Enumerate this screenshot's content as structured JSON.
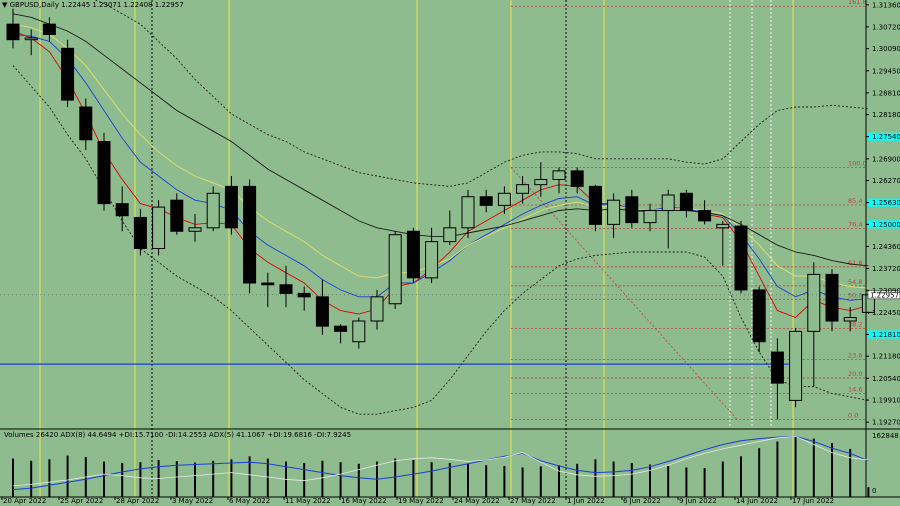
{
  "header": {
    "menu_icon": "triangle-down-icon",
    "symbol": "GBPUSD,Daily",
    "ohlc": "1.22445 1.23071 1.22408 1.22957"
  },
  "indicator": {
    "text": "Volumes 26420  ADX(8) 44.6494 +DI:15.7100 -DI:14.2553  ADX(5) 41.1067 +DI:19.6816 -DI:7.9245",
    "top_value": "162848",
    "zero_value": "0"
  },
  "colors": {
    "background": "#8fbc8f",
    "bull_candle": "#8fbc8f",
    "bear_candle": "#000000",
    "ma_red": "#dd0000",
    "ma_blue": "#1a3fd6",
    "ma_yellow": "#e0e070",
    "ma_black": "#1a1a1a",
    "bollinger": "#1a1a1a",
    "fib_line": "#c0403a",
    "horizontal_line": "#1a3fd6",
    "vertical_yellow": "#e8e840",
    "price_highlight": "#00ffff",
    "adx_line": "#1a3fd6",
    "di_line": "#e8e8e8"
  },
  "chart_data": {
    "type": "candlestick",
    "title": "GBPUSD,Daily",
    "ylim": [
      1.191,
      1.315
    ],
    "price_ticks": [
      "1.31360",
      "1.30720",
      "1.30090",
      "1.29450",
      "1.28810",
      "1.28180",
      "1.27540",
      "1.26900",
      "1.26270",
      "1.25630",
      "1.25000",
      "1.24360",
      "1.23720",
      "1.23090",
      "1.22450",
      "1.21810",
      "1.21180",
      "1.20540",
      "1.19910",
      "1.19270"
    ],
    "current_price": "1.22957",
    "highlighted_prices": [
      1.2754,
      1.2563,
      1.25,
      1.2181
    ],
    "date_labels": [
      "20 Apr 2022",
      "25 Apr 2022",
      "28 Apr 2022",
      "3 May 2022",
      "6 May 2022",
      "11 May 2022",
      "16 May 2022",
      "19 May 2022",
      "24 May 2022",
      "27 May 2022",
      "1 Jun 2022",
      "6 Jun 2022",
      "9 Jun 2022",
      "14 Jun 2022",
      "17 Jun 2022"
    ],
    "candles": [
      {
        "o": 1.308,
        "h": 1.3125,
        "l": 1.301,
        "c": 1.3035
      },
      {
        "o": 1.3035,
        "h": 1.3065,
        "l": 1.299,
        "c": 1.304
      },
      {
        "o": 1.308,
        "h": 1.31,
        "l": 1.303,
        "c": 1.305
      },
      {
        "o": 1.301,
        "h": 1.3035,
        "l": 1.284,
        "c": 1.286
      },
      {
        "o": 1.284,
        "h": 1.2865,
        "l": 1.2715,
        "c": 1.2745
      },
      {
        "o": 1.274,
        "h": 1.2765,
        "l": 1.254,
        "c": 1.256
      },
      {
        "o": 1.256,
        "h": 1.261,
        "l": 1.248,
        "c": 1.2525
      },
      {
        "o": 1.252,
        "h": 1.2545,
        "l": 1.241,
        "c": 1.243
      },
      {
        "o": 1.243,
        "h": 1.257,
        "l": 1.241,
        "c": 1.255
      },
      {
        "o": 1.257,
        "h": 1.259,
        "l": 1.247,
        "c": 1.248
      },
      {
        "o": 1.248,
        "h": 1.253,
        "l": 1.245,
        "c": 1.249
      },
      {
        "o": 1.249,
        "h": 1.261,
        "l": 1.248,
        "c": 1.259
      },
      {
        "o": 1.261,
        "h": 1.264,
        "l": 1.247,
        "c": 1.249
      },
      {
        "o": 1.261,
        "h": 1.263,
        "l": 1.23,
        "c": 1.233
      },
      {
        "o": 1.233,
        "h": 1.236,
        "l": 1.226,
        "c": 1.2325
      },
      {
        "o": 1.2325,
        "h": 1.238,
        "l": 1.226,
        "c": 1.23
      },
      {
        "o": 1.23,
        "h": 1.232,
        "l": 1.225,
        "c": 1.229
      },
      {
        "o": 1.229,
        "h": 1.234,
        "l": 1.218,
        "c": 1.2205
      },
      {
        "o": 1.2205,
        "h": 1.221,
        "l": 1.2155,
        "c": 1.219
      },
      {
        "o": 1.216,
        "h": 1.223,
        "l": 1.214,
        "c": 1.222
      },
      {
        "o": 1.222,
        "h": 1.231,
        "l": 1.2195,
        "c": 1.229
      },
      {
        "o": 1.227,
        "h": 1.248,
        "l": 1.2255,
        "c": 1.247
      },
      {
        "o": 1.248,
        "h": 1.249,
        "l": 1.233,
        "c": 1.2345
      },
      {
        "o": 1.2345,
        "h": 1.249,
        "l": 1.233,
        "c": 1.245
      },
      {
        "o": 1.245,
        "h": 1.254,
        "l": 1.244,
        "c": 1.249
      },
      {
        "o": 1.249,
        "h": 1.26,
        "l": 1.246,
        "c": 1.258
      },
      {
        "o": 1.258,
        "h": 1.26,
        "l": 1.2535,
        "c": 1.2555
      },
      {
        "o": 1.2555,
        "h": 1.261,
        "l": 1.253,
        "c": 1.259
      },
      {
        "o": 1.259,
        "h": 1.264,
        "l": 1.256,
        "c": 1.2615
      },
      {
        "o": 1.2615,
        "h": 1.268,
        "l": 1.258,
        "c": 1.263
      },
      {
        "o": 1.263,
        "h": 1.2665,
        "l": 1.259,
        "c": 1.2655
      },
      {
        "o": 1.2655,
        "h": 1.2665,
        "l": 1.259,
        "c": 1.261
      },
      {
        "o": 1.261,
        "h": 1.2615,
        "l": 1.248,
        "c": 1.25
      },
      {
        "o": 1.25,
        "h": 1.259,
        "l": 1.246,
        "c": 1.257
      },
      {
        "o": 1.258,
        "h": 1.26,
        "l": 1.249,
        "c": 1.2505
      },
      {
        "o": 1.2505,
        "h": 1.256,
        "l": 1.248,
        "c": 1.254
      },
      {
        "o": 1.254,
        "h": 1.26,
        "l": 1.243,
        "c": 1.2585
      },
      {
        "o": 1.259,
        "h": 1.26,
        "l": 1.252,
        "c": 1.254
      },
      {
        "o": 1.254,
        "h": 1.257,
        "l": 1.25,
        "c": 1.251
      },
      {
        "o": 1.249,
        "h": 1.251,
        "l": 1.238,
        "c": 1.25
      },
      {
        "o": 1.2495,
        "h": 1.251,
        "l": 1.23,
        "c": 1.231
      },
      {
        "o": 1.231,
        "h": 1.232,
        "l": 1.213,
        "c": 1.216
      },
      {
        "o": 1.213,
        "h": 1.217,
        "l": 1.1935,
        "c": 1.204
      },
      {
        "o": 1.199,
        "h": 1.22,
        "l": 1.197,
        "c": 1.219
      },
      {
        "o": 1.219,
        "h": 1.239,
        "l": 1.203,
        "c": 1.2355
      },
      {
        "o": 1.2355,
        "h": 1.237,
        "l": 1.219,
        "c": 1.222
      },
      {
        "o": 1.222,
        "h": 1.226,
        "l": 1.219,
        "c": 1.223
      },
      {
        "o": 1.2245,
        "h": 1.2307,
        "l": 1.2241,
        "c": 1.2296
      }
    ],
    "series": [
      {
        "values": [
          1.306,
          1.304,
          1.3,
          1.292,
          1.282,
          1.271,
          1.263,
          1.256,
          1.2545,
          1.252,
          1.25,
          1.2505,
          1.25,
          1.243,
          1.239,
          1.236,
          1.233,
          1.228,
          1.225,
          1.224,
          1.2255,
          1.232,
          1.233,
          1.237,
          1.242,
          1.248,
          1.251,
          1.254,
          1.257,
          1.26,
          1.2615,
          1.261,
          1.256,
          1.256,
          1.254,
          1.2535,
          1.255,
          1.2545,
          1.253,
          1.252,
          1.245,
          1.235,
          1.225,
          1.223,
          1.228,
          1.226,
          1.225,
          1.2265
        ]
      },
      {
        "values": [
          1.305,
          1.3045,
          1.303,
          1.298,
          1.291,
          1.283,
          1.275,
          1.268,
          1.264,
          1.26,
          1.257,
          1.256,
          1.254,
          1.248,
          1.244,
          1.241,
          1.238,
          1.234,
          1.231,
          1.229,
          1.229,
          1.233,
          1.233,
          1.236,
          1.2395,
          1.244,
          1.247,
          1.25,
          1.253,
          1.2555,
          1.2575,
          1.258,
          1.2555,
          1.256,
          1.2545,
          1.254,
          1.255,
          1.2545,
          1.2535,
          1.2525,
          1.247,
          1.24,
          1.232,
          1.229,
          1.231,
          1.229,
          1.228,
          1.2285
        ]
      },
      {
        "values": [
          1.308,
          1.307,
          1.305,
          1.301,
          1.296,
          1.289,
          1.282,
          1.276,
          1.271,
          1.267,
          1.264,
          1.262,
          1.26,
          1.255,
          1.251,
          1.248,
          1.245,
          1.241,
          1.238,
          1.235,
          1.2345,
          1.236,
          1.236,
          1.238,
          1.24,
          1.244,
          1.2465,
          1.249,
          1.2515,
          1.254,
          1.2555,
          1.2565,
          1.255,
          1.2555,
          1.2545,
          1.254,
          1.2545,
          1.2545,
          1.254,
          1.253,
          1.249,
          1.244,
          1.238,
          1.235,
          1.235,
          1.233,
          1.232,
          1.2315
        ]
      },
      {
        "values": [
          1.311,
          1.31,
          1.308,
          1.306,
          1.303,
          1.299,
          1.295,
          1.291,
          1.287,
          1.283,
          1.28,
          1.277,
          1.274,
          1.27,
          1.266,
          1.263,
          1.26,
          1.257,
          1.254,
          1.251,
          1.249,
          1.248,
          1.247,
          1.2465,
          1.2465,
          1.2475,
          1.2485,
          1.2495,
          1.251,
          1.2525,
          1.254,
          1.2545,
          1.254,
          1.2545,
          1.254,
          1.254,
          1.254,
          1.254,
          1.2535,
          1.2525,
          1.25,
          1.247,
          1.244,
          1.242,
          1.241,
          1.2395,
          1.2385,
          1.238
        ]
      },
      {
        "values": [
          1.316,
          1.317,
          1.3175,
          1.317,
          1.316,
          1.314,
          1.311,
          1.308,
          1.303,
          1.298,
          1.292,
          1.287,
          1.282,
          1.279,
          1.276,
          1.274,
          1.271,
          1.269,
          1.267,
          1.265,
          1.264,
          1.263,
          1.262,
          1.2615,
          1.261,
          1.262,
          1.265,
          1.268,
          1.27,
          1.271,
          1.271,
          1.2705,
          1.269,
          1.269,
          1.269,
          1.269,
          1.269,
          1.268,
          1.2675,
          1.269,
          1.274,
          1.279,
          1.283,
          1.284,
          1.284,
          1.2845,
          1.284,
          1.2835
        ]
      },
      {
        "values": [
          1.296,
          1.29,
          1.284,
          1.276,
          1.269,
          1.26,
          1.251,
          1.243,
          1.239,
          1.235,
          1.232,
          1.229,
          1.225,
          1.22,
          1.215,
          1.21,
          1.205,
          1.201,
          1.197,
          1.195,
          1.195,
          1.196,
          1.197,
          1.199,
          1.205,
          1.212,
          1.219,
          1.225,
          1.23,
          1.234,
          1.238,
          1.24,
          1.241,
          1.2415,
          1.242,
          1.242,
          1.242,
          1.242,
          1.2405,
          1.235,
          1.223,
          1.213,
          1.205,
          1.203,
          1.203,
          1.201,
          1.2,
          1.199
        ]
      }
    ],
    "horizontal_level": 1.2095,
    "fibonacci": [
      {
        "label": "161.8",
        "price": 1.3132
      },
      {
        "label": "100.0",
        "price": 1.2665
      },
      {
        "label": "85.4",
        "price": 1.2556
      },
      {
        "label": "76.4",
        "price": 1.2488
      },
      {
        "label": "61.8",
        "price": 1.2377
      },
      {
        "label": "54.8",
        "price": 1.2322
      },
      {
        "label": "50.0",
        "price": 1.2283
      },
      {
        "label": "38.2",
        "price": 1.2198
      },
      {
        "label": "23.6",
        "price": 1.2108
      },
      {
        "label": "20.0",
        "price": 1.2055
      },
      {
        "label": "14.6",
        "price": 1.201
      },
      {
        "label": "0.0",
        "price": 1.1935
      }
    ],
    "volumes": [
      104000,
      98000,
      102000,
      112000,
      108000,
      96000,
      92000,
      94000,
      100000,
      97000,
      93000,
      98000,
      102000,
      110000,
      104000,
      96000,
      92000,
      98000,
      94000,
      90000,
      96000,
      104000,
      100000,
      94000,
      92000,
      90000,
      86000,
      84000,
      80000,
      83000,
      86000,
      90000,
      102000,
      96000,
      92000,
      88000,
      84000,
      80000,
      78000,
      96000,
      110000,
      132000,
      150000,
      162848,
      158000,
      146000,
      130000,
      26420
    ],
    "adx_values": [
      20000,
      24000,
      32000,
      40000,
      48000,
      58000,
      68000,
      76000,
      82000,
      86000,
      88000,
      90000,
      92000,
      94000,
      90000,
      82000,
      74000,
      66000,
      58000,
      52000,
      48000,
      54000,
      62000,
      70000,
      80000,
      90000,
      100000,
      110000,
      118000,
      98000,
      84000,
      72000,
      66000,
      68000,
      72000,
      82000,
      96000,
      112000,
      128000,
      142000,
      152000,
      158000,
      162000,
      164000,
      150000,
      132000,
      118000,
      98000
    ],
    "di_values": [
      30000,
      34000,
      40000,
      46000,
      54000,
      62000,
      58000,
      52000,
      50000,
      54000,
      58000,
      62000,
      66000,
      60000,
      54000,
      48000,
      44000,
      52000,
      62000,
      74000,
      86000,
      98000,
      104000,
      106000,
      102000,
      96000,
      100000,
      108000,
      120000,
      94000,
      70000,
      60000,
      56000,
      58000,
      62000,
      72000,
      86000,
      104000,
      118000,
      130000,
      140000,
      150000,
      160000,
      164000,
      142000,
      120000,
      106000,
      100000
    ]
  }
}
